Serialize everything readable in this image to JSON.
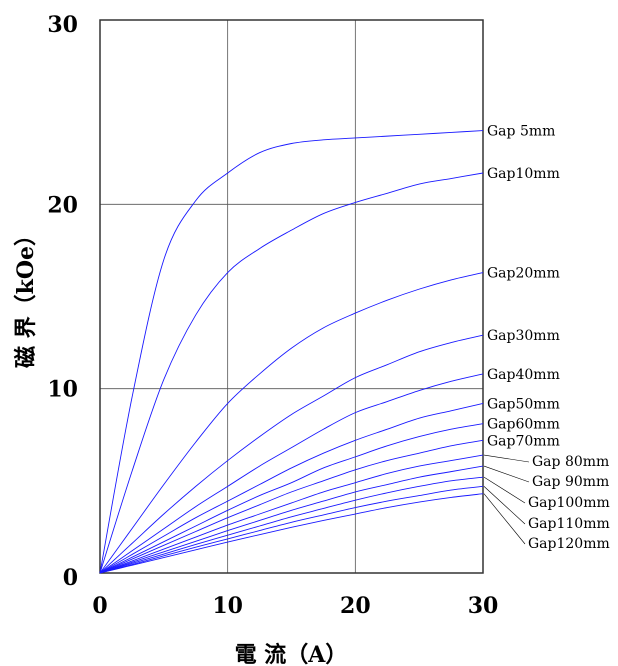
{
  "chart_data": {
    "type": "line",
    "xlabel": "電 流（A）",
    "ylabel": "磁 界（kOe）",
    "xlim": [
      0,
      30
    ],
    "ylim": [
      0,
      30
    ],
    "x_ticks": [
      "0",
      "10",
      "20",
      "30"
    ],
    "y_ticks": [
      "0",
      "10",
      "20",
      "30"
    ],
    "grid": true,
    "line_color": "#1a1aff",
    "x": [
      0,
      2.5,
      5,
      7.5,
      10,
      12.5,
      15,
      17.5,
      20,
      22.5,
      25,
      27.5,
      30
    ],
    "series": [
      {
        "name": "Gap 5mm",
        "values": [
          0,
          9.5,
          17.0,
          20.2,
          21.7,
          22.8,
          23.3,
          23.5,
          23.6,
          23.7,
          23.8,
          23.9,
          24.0
        ]
      },
      {
        "name": "Gap10mm",
        "values": [
          0,
          5.5,
          10.5,
          14.0,
          16.3,
          17.6,
          18.6,
          19.5,
          20.1,
          20.6,
          21.1,
          21.4,
          21.7
        ]
      },
      {
        "name": "Gap20mm",
        "values": [
          0,
          2.4,
          4.8,
          7.1,
          9.2,
          10.8,
          12.2,
          13.3,
          14.1,
          14.8,
          15.4,
          15.9,
          16.3
        ]
      },
      {
        "name": "Gap30mm",
        "values": [
          0,
          1.6,
          3.2,
          4.7,
          6.1,
          7.4,
          8.6,
          9.6,
          10.6,
          11.3,
          12.0,
          12.5,
          12.9
        ]
      },
      {
        "name": "Gap40mm",
        "values": [
          0,
          1.2,
          2.4,
          3.6,
          4.7,
          5.8,
          6.8,
          7.8,
          8.7,
          9.3,
          9.9,
          10.4,
          10.8
        ]
      },
      {
        "name": "Gap50mm",
        "values": [
          0,
          1.0,
          2.0,
          3.0,
          3.9,
          4.8,
          5.7,
          6.5,
          7.2,
          7.8,
          8.4,
          8.8,
          9.2
        ]
      },
      {
        "name": "Gap60mm",
        "values": [
          0,
          0.85,
          1.7,
          2.55,
          3.4,
          4.2,
          4.9,
          5.7,
          6.3,
          6.9,
          7.4,
          7.8,
          8.1
        ]
      },
      {
        "name": "Gap70mm",
        "values": [
          0,
          0.75,
          1.5,
          2.25,
          3.0,
          3.7,
          4.4,
          5.0,
          5.6,
          6.1,
          6.5,
          6.9,
          7.2
        ]
      },
      {
        "name": "Gap 80mm",
        "values": [
          0,
          0.65,
          1.3,
          1.95,
          2.6,
          3.2,
          3.8,
          4.4,
          4.9,
          5.4,
          5.8,
          6.1,
          6.4
        ]
      },
      {
        "name": "Gap 90mm",
        "values": [
          0,
          0.58,
          1.15,
          1.72,
          2.3,
          2.85,
          3.4,
          3.9,
          4.4,
          4.8,
          5.2,
          5.5,
          5.8
        ]
      },
      {
        "name": "Gap100mm",
        "values": [
          0,
          0.52,
          1.03,
          1.55,
          2.05,
          2.55,
          3.05,
          3.5,
          3.95,
          4.35,
          4.7,
          5.0,
          5.2
        ]
      },
      {
        "name": "Gap110mm",
        "values": [
          0,
          0.46,
          0.93,
          1.4,
          1.85,
          2.3,
          2.75,
          3.15,
          3.55,
          3.9,
          4.2,
          4.5,
          4.7
        ]
      },
      {
        "name": "Gap120mm",
        "values": [
          0,
          0.42,
          0.84,
          1.26,
          1.68,
          2.08,
          2.48,
          2.85,
          3.2,
          3.55,
          3.85,
          4.1,
          4.3
        ]
      }
    ]
  }
}
